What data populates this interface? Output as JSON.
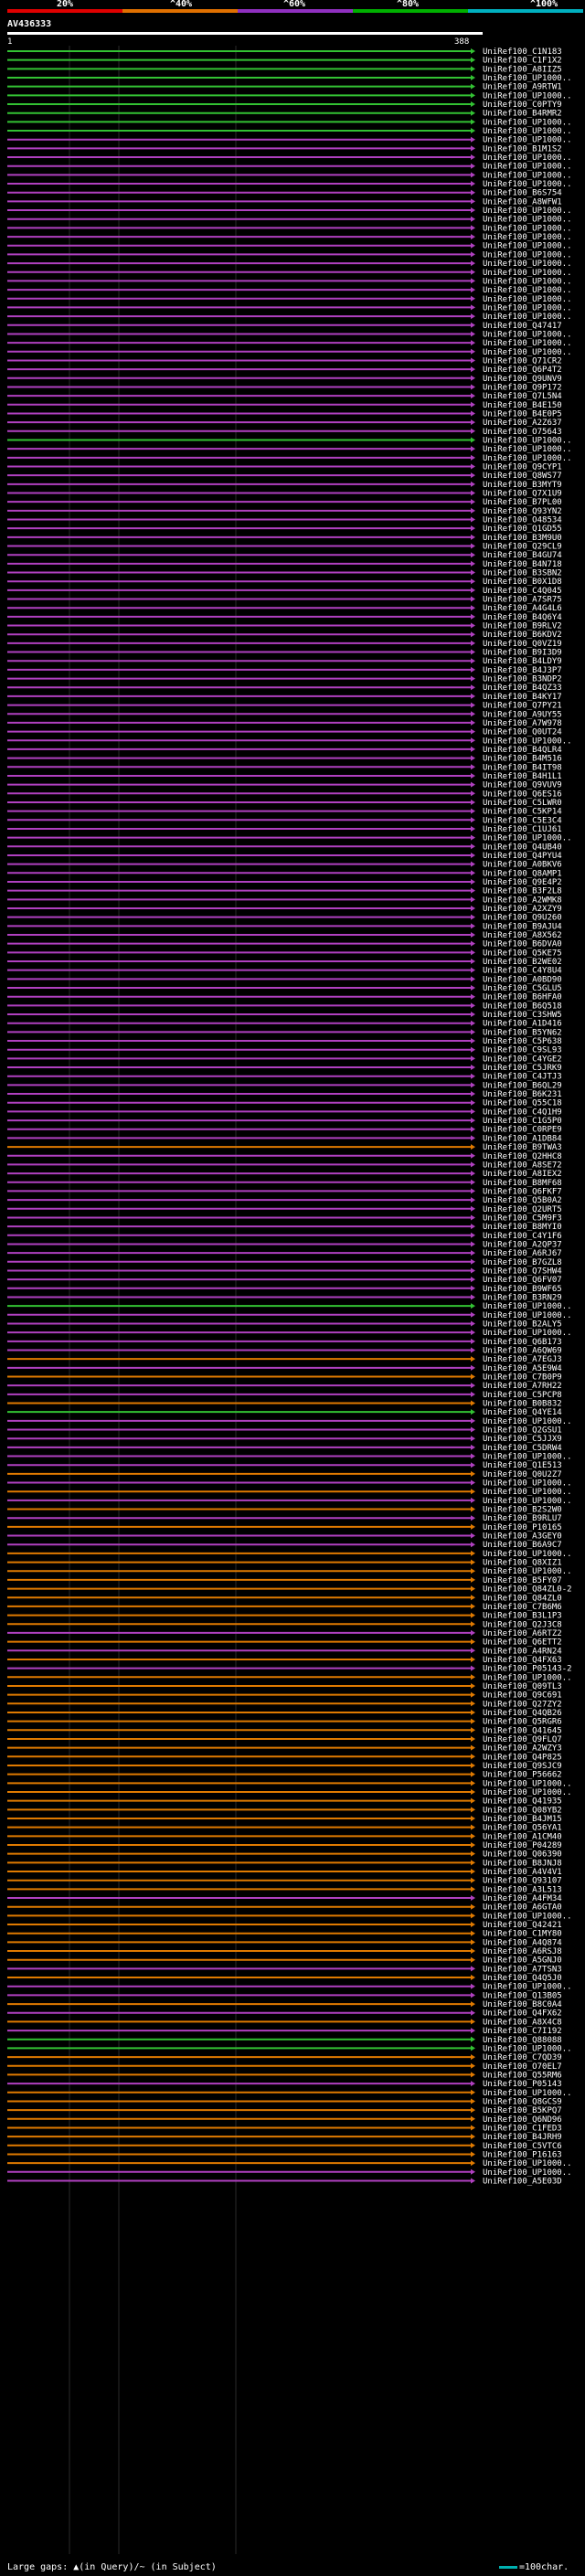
{
  "scale": {
    "colors": [
      "#e00000",
      "#e07000",
      "#9030c0",
      "#00b000",
      "#00b0c0"
    ],
    "labels": [
      "20%",
      "^40%",
      "^60%",
      "^80%",
      "^100%"
    ]
  },
  "query": {
    "id": "AV436333",
    "start": "1",
    "end": "388"
  },
  "legend_colors": {
    "green": "#33c233",
    "purple": "#b040c0",
    "orange": "#e07a00",
    "gap": "#ffffff"
  },
  "hits": [
    {
      "id": "UniRef100_C1N183",
      "c": "g"
    },
    {
      "id": "UniRef100_C1F1X2",
      "c": "g"
    },
    {
      "id": "UniRef100_A8IIZ5",
      "c": "g"
    },
    {
      "id": "UniRef100_UP1000..",
      "c": "g"
    },
    {
      "id": "UniRef100_A9RTW1",
      "c": "g"
    },
    {
      "id": "UniRef100_UP1000..",
      "c": "g"
    },
    {
      "id": "UniRef100_C0PTY9",
      "c": "g"
    },
    {
      "id": "UniRef100_B4RMR2",
      "c": "g"
    },
    {
      "id": "UniRef100_UP1000..",
      "c": "g"
    },
    {
      "id": "UniRef100_UP1000..",
      "c": "g"
    },
    {
      "id": "UniRef100_UP1000..",
      "c": "p"
    },
    {
      "id": "UniRef100_B1M1S2",
      "c": "p"
    },
    {
      "id": "UniRef100_UP1000..",
      "c": "p"
    },
    {
      "id": "UniRef100_UP1000..",
      "c": "p"
    },
    {
      "id": "UniRef100_UP1000..",
      "c": "p"
    },
    {
      "id": "UniRef100_UP1000..",
      "c": "p"
    },
    {
      "id": "UniRef100_B6S754",
      "c": "p"
    },
    {
      "id": "UniRef100_A8WFW1",
      "c": "p"
    },
    {
      "id": "UniRef100_UP1000..",
      "c": "p"
    },
    {
      "id": "UniRef100_UP1000..",
      "c": "p"
    },
    {
      "id": "UniRef100_UP1000..",
      "c": "p"
    },
    {
      "id": "UniRef100_UP1000..",
      "c": "p"
    },
    {
      "id": "UniRef100_UP1000..",
      "c": "p"
    },
    {
      "id": "UniRef100_UP1000..",
      "c": "p"
    },
    {
      "id": "UniRef100_UP1000..",
      "c": "p"
    },
    {
      "id": "UniRef100_UP1000..",
      "c": "p"
    },
    {
      "id": "UniRef100_UP1000..",
      "c": "p"
    },
    {
      "id": "UniRef100_UP1000..",
      "c": "p"
    },
    {
      "id": "UniRef100_UP1000..",
      "c": "p"
    },
    {
      "id": "UniRef100_UP1000..",
      "c": "p"
    },
    {
      "id": "UniRef100_UP1000..",
      "c": "p"
    },
    {
      "id": "UniRef100_Q47417",
      "c": "p"
    },
    {
      "id": "UniRef100_UP1000..",
      "c": "p"
    },
    {
      "id": "UniRef100_UP1000..",
      "c": "p"
    },
    {
      "id": "UniRef100_UP1000..",
      "c": "p"
    },
    {
      "id": "UniRef100_Q71CR2",
      "c": "p"
    },
    {
      "id": "UniRef100_Q6P4T2",
      "c": "p"
    },
    {
      "id": "UniRef100_Q9UNV9",
      "c": "p"
    },
    {
      "id": "UniRef100_Q9P172",
      "c": "p"
    },
    {
      "id": "UniRef100_Q7L5N4",
      "c": "p"
    },
    {
      "id": "UniRef100_B4E150",
      "c": "p"
    },
    {
      "id": "UniRef100_B4E0P5",
      "c": "p"
    },
    {
      "id": "UniRef100_A2Z637",
      "c": "p"
    },
    {
      "id": "UniRef100_O75643",
      "c": "p"
    },
    {
      "id": "UniRef100_UP1000..",
      "c": "g"
    },
    {
      "id": "UniRef100_UP1000..",
      "c": "p"
    },
    {
      "id": "UniRef100_UP1000..",
      "c": "p"
    },
    {
      "id": "UniRef100_Q9CYP1",
      "c": "p"
    },
    {
      "id": "UniRef100_Q8WS77",
      "c": "p"
    },
    {
      "id": "UniRef100_B3MYT9",
      "c": "p"
    },
    {
      "id": "UniRef100_Q7X1U9",
      "c": "p"
    },
    {
      "id": "UniRef100_B7PL00",
      "c": "p"
    },
    {
      "id": "UniRef100_Q93YN2",
      "c": "p"
    },
    {
      "id": "UniRef100_O48534",
      "c": "p"
    },
    {
      "id": "UniRef100_Q1GD55",
      "c": "p"
    },
    {
      "id": "UniRef100_B3M9U0",
      "c": "p"
    },
    {
      "id": "UniRef100_Q29CL9",
      "c": "p"
    },
    {
      "id": "UniRef100_B4GU74",
      "c": "p"
    },
    {
      "id": "UniRef100_B4N718",
      "c": "p"
    },
    {
      "id": "UniRef100_B3SBN2",
      "c": "p"
    },
    {
      "id": "UniRef100_B0X1D8",
      "c": "p"
    },
    {
      "id": "UniRef100_C4Q045",
      "c": "p"
    },
    {
      "id": "UniRef100_A7SR75",
      "c": "p"
    },
    {
      "id": "UniRef100_A4G4L6",
      "c": "p"
    },
    {
      "id": "UniRef100_B4Q6Y4",
      "c": "p"
    },
    {
      "id": "UniRef100_B9RLV2",
      "c": "p"
    },
    {
      "id": "UniRef100_B6KDV2",
      "c": "p"
    },
    {
      "id": "UniRef100_Q0VZ19",
      "c": "p"
    },
    {
      "id": "UniRef100_B9I3D9",
      "c": "p"
    },
    {
      "id": "UniRef100_B4LDY9",
      "c": "p"
    },
    {
      "id": "UniRef100_B4J3P7",
      "c": "p"
    },
    {
      "id": "UniRef100_B3NDP2",
      "c": "p"
    },
    {
      "id": "UniRef100_B4QZ33",
      "c": "p"
    },
    {
      "id": "UniRef100_B4KY17",
      "c": "p"
    },
    {
      "id": "UniRef100_Q7PY21",
      "c": "p"
    },
    {
      "id": "UniRef100_A9UY55",
      "c": "p"
    },
    {
      "id": "UniRef100_A7W978",
      "c": "p"
    },
    {
      "id": "UniRef100_Q0UT24",
      "c": "p"
    },
    {
      "id": "UniRef100_UP1000..",
      "c": "p"
    },
    {
      "id": "UniRef100_B4QLR4",
      "c": "p"
    },
    {
      "id": "UniRef100_B4M516",
      "c": "p"
    },
    {
      "id": "UniRef100_B4IT98",
      "c": "p"
    },
    {
      "id": "UniRef100_B4H1L1",
      "c": "p"
    },
    {
      "id": "UniRef100_Q9VUV9",
      "c": "p"
    },
    {
      "id": "UniRef100_Q6ES16",
      "c": "p"
    },
    {
      "id": "UniRef100_C5LWR0",
      "c": "p"
    },
    {
      "id": "UniRef100_C5KP14",
      "c": "p"
    },
    {
      "id": "UniRef100_C5E3C4",
      "c": "p"
    },
    {
      "id": "UniRef100_C1UJ61",
      "c": "p"
    },
    {
      "id": "UniRef100_UP1000..",
      "c": "p"
    },
    {
      "id": "UniRef100_Q4UB40",
      "c": "p"
    },
    {
      "id": "UniRef100_Q4PYU4",
      "c": "p"
    },
    {
      "id": "UniRef100_A0BKV6",
      "c": "p"
    },
    {
      "id": "UniRef100_Q8AMP1",
      "c": "p"
    },
    {
      "id": "UniRef100_Q9E4P2",
      "c": "p"
    },
    {
      "id": "UniRef100_B3F2L8",
      "c": "p"
    },
    {
      "id": "UniRef100_A2WMK8",
      "c": "p"
    },
    {
      "id": "UniRef100_A2XZY9",
      "c": "p"
    },
    {
      "id": "UniRef100_Q9U260",
      "c": "p"
    },
    {
      "id": "UniRef100_B9AJU4",
      "c": "p"
    },
    {
      "id": "UniRef100_A8X562",
      "c": "p"
    },
    {
      "id": "UniRef100_B6DVA0",
      "c": "p"
    },
    {
      "id": "UniRef100_Q5KE75",
      "c": "p"
    },
    {
      "id": "UniRef100_B2WE02",
      "c": "p"
    },
    {
      "id": "UniRef100_C4Y8U4",
      "c": "p"
    },
    {
      "id": "UniRef100_A0BD90",
      "c": "p"
    },
    {
      "id": "UniRef100_C5GLU5",
      "c": "p"
    },
    {
      "id": "UniRef100_B6HFA0",
      "c": "p"
    },
    {
      "id": "UniRef100_B6Q518",
      "c": "p"
    },
    {
      "id": "UniRef100_C3SHW5",
      "c": "p"
    },
    {
      "id": "UniRef100_A1D416",
      "c": "p"
    },
    {
      "id": "UniRef100_B5YN62",
      "c": "p"
    },
    {
      "id": "UniRef100_C5P638",
      "c": "p"
    },
    {
      "id": "UniRef100_C9SL93",
      "c": "p"
    },
    {
      "id": "UniRef100_C4YGE2",
      "c": "p"
    },
    {
      "id": "UniRef100_C5JRK9",
      "c": "p"
    },
    {
      "id": "UniRef100_C4JTJ3",
      "c": "p"
    },
    {
      "id": "UniRef100_B6QL29",
      "c": "p"
    },
    {
      "id": "UniRef100_B6K231",
      "c": "p"
    },
    {
      "id": "UniRef100_Q55C18",
      "c": "p"
    },
    {
      "id": "UniRef100_C4Q1H9",
      "c": "p"
    },
    {
      "id": "UniRef100_C1G5P0",
      "c": "p"
    },
    {
      "id": "UniRef100_C0RPE9",
      "c": "p"
    },
    {
      "id": "UniRef100_A1DB84",
      "c": "p"
    },
    {
      "id": "UniRef100_B9TWA3",
      "c": "o"
    },
    {
      "id": "UniRef100_Q2HHC8",
      "c": "p"
    },
    {
      "id": "UniRef100_A8SE72",
      "c": "p"
    },
    {
      "id": "UniRef100_A8IEX2",
      "c": "p"
    },
    {
      "id": "UniRef100_B8MF68",
      "c": "p"
    },
    {
      "id": "UniRef100_Q6FKF7",
      "c": "p"
    },
    {
      "id": "UniRef100_Q5B0A2",
      "c": "p"
    },
    {
      "id": "UniRef100_Q2URT5",
      "c": "p"
    },
    {
      "id": "UniRef100_C5M9F3",
      "c": "p"
    },
    {
      "id": "UniRef100_B8MYI0",
      "c": "p"
    },
    {
      "id": "UniRef100_C4Y1F6",
      "c": "p"
    },
    {
      "id": "UniRef100_A2QP37",
      "c": "p"
    },
    {
      "id": "UniRef100_A6RJ67",
      "c": "p"
    },
    {
      "id": "UniRef100_B7GZL8",
      "c": "p"
    },
    {
      "id": "UniRef100_Q7SHW4",
      "c": "p"
    },
    {
      "id": "UniRef100_Q6FV07",
      "c": "p"
    },
    {
      "id": "UniRef100_B9WF65",
      "c": "p"
    },
    {
      "id": "UniRef100_B3RN29",
      "c": "p"
    },
    {
      "id": "UniRef100_UP1000..",
      "c": "g"
    },
    {
      "id": "UniRef100_UP1000..",
      "c": "p"
    },
    {
      "id": "UniRef100_B2ALY5",
      "c": "p"
    },
    {
      "id": "UniRef100_UP1000..",
      "c": "p"
    },
    {
      "id": "UniRef100_Q6B173",
      "c": "p"
    },
    {
      "id": "UniRef100_A6QW69",
      "c": "p"
    },
    {
      "id": "UniRef100_A7EGJ3",
      "c": "o"
    },
    {
      "id": "UniRef100_A5E9W4",
      "c": "p"
    },
    {
      "id": "UniRef100_C7B0P9",
      "c": "o"
    },
    {
      "id": "UniRef100_A7RH22",
      "c": "p"
    },
    {
      "id": "UniRef100_C5PCP8",
      "c": "p"
    },
    {
      "id": "UniRef100_B0B832",
      "c": "o"
    },
    {
      "id": "UniRef100_Q4YE14",
      "c": "g"
    },
    {
      "id": "UniRef100_UP1000..",
      "c": "p"
    },
    {
      "id": "UniRef100_Q2GSU1",
      "c": "p"
    },
    {
      "id": "UniRef100_C5JJX9",
      "c": "p"
    },
    {
      "id": "UniRef100_C5DRW4",
      "c": "p"
    },
    {
      "id": "UniRef100_UP1000..",
      "c": "p"
    },
    {
      "id": "UniRef100_Q1E513",
      "c": "p"
    },
    {
      "id": "UniRef100_Q0U2Z7",
      "c": "o"
    },
    {
      "id": "UniRef100_UP1000..",
      "c": "p"
    },
    {
      "id": "UniRef100_UP1000..",
      "c": "o"
    },
    {
      "id": "UniRef100_UP1000..",
      "c": "p"
    },
    {
      "id": "UniRef100_B2S2W0",
      "c": "o"
    },
    {
      "id": "UniRef100_B9RLU7",
      "c": "p"
    },
    {
      "id": "UniRef100_P10165",
      "c": "o"
    },
    {
      "id": "UniRef100_A3GEY0",
      "c": "p"
    },
    {
      "id": "UniRef100_B6A9C7",
      "c": "p"
    },
    {
      "id": "UniRef100_UP1000..",
      "c": "o"
    },
    {
      "id": "UniRef100_Q8XIZ1",
      "c": "o"
    },
    {
      "id": "UniRef100_UP1000..",
      "c": "o"
    },
    {
      "id": "UniRef100_B5FY07",
      "c": "o"
    },
    {
      "id": "UniRef100_Q84ZL0-2",
      "c": "o"
    },
    {
      "id": "UniRef100_Q84ZL0",
      "c": "o"
    },
    {
      "id": "UniRef100_C7B6M6",
      "c": "o"
    },
    {
      "id": "UniRef100_B3L1P3",
      "c": "o"
    },
    {
      "id": "UniRef100_Q2J3C8",
      "c": "o"
    },
    {
      "id": "UniRef100_A6RTZ2",
      "c": "p"
    },
    {
      "id": "UniRef100_Q6ETT2",
      "c": "o"
    },
    {
      "id": "UniRef100_A4RN24",
      "c": "p"
    },
    {
      "id": "UniRef100_Q4FX63",
      "c": "o"
    },
    {
      "id": "UniRef100_P05143-2",
      "c": "p"
    },
    {
      "id": "UniRef100_UP1000..",
      "c": "o"
    },
    {
      "id": "UniRef100_Q09TL3",
      "c": "o"
    },
    {
      "id": "UniRef100_Q9C691",
      "c": "o"
    },
    {
      "id": "UniRef100_Q27ZY2",
      "c": "o"
    },
    {
      "id": "UniRef100_Q4QB26",
      "c": "o"
    },
    {
      "id": "UniRef100_Q5RGR6",
      "c": "o"
    },
    {
      "id": "UniRef100_Q41645",
      "c": "o"
    },
    {
      "id": "UniRef100_Q9FLQ7",
      "c": "o"
    },
    {
      "id": "UniRef100_A2WZY3",
      "c": "o"
    },
    {
      "id": "UniRef100_Q4P825",
      "c": "o"
    },
    {
      "id": "UniRef100_Q9SJC9",
      "c": "o"
    },
    {
      "id": "UniRef100_P56662",
      "c": "o"
    },
    {
      "id": "UniRef100_UP1000..",
      "c": "o"
    },
    {
      "id": "UniRef100_UP1000..",
      "c": "o"
    },
    {
      "id": "UniRef100_Q41935",
      "c": "o"
    },
    {
      "id": "UniRef100_Q08YB2",
      "c": "o"
    },
    {
      "id": "UniRef100_B4JM15",
      "c": "o"
    },
    {
      "id": "UniRef100_Q56YA1",
      "c": "o"
    },
    {
      "id": "UniRef100_A1CM40",
      "c": "o"
    },
    {
      "id": "UniRef100_P04289",
      "c": "o"
    },
    {
      "id": "UniRef100_Q06390",
      "c": "o"
    },
    {
      "id": "UniRef100_B8JNJ8",
      "c": "o"
    },
    {
      "id": "UniRef100_A4V4V1",
      "c": "o"
    },
    {
      "id": "UniRef100_Q93107",
      "c": "o"
    },
    {
      "id": "UniRef100_A3L513",
      "c": "o"
    },
    {
      "id": "UniRef100_A4FM34",
      "c": "p"
    },
    {
      "id": "UniRef100_A6GTA0",
      "c": "o"
    },
    {
      "id": "UniRef100_UP1000..",
      "c": "o"
    },
    {
      "id": "UniRef100_Q42421",
      "c": "o"
    },
    {
      "id": "UniRef100_C1MY80",
      "c": "o"
    },
    {
      "id": "UniRef100_A4Q874",
      "c": "o"
    },
    {
      "id": "UniRef100_A6RSJ8",
      "c": "o"
    },
    {
      "id": "UniRef100_A5GNJ0",
      "c": "o"
    },
    {
      "id": "UniRef100_A7TSN3",
      "c": "p"
    },
    {
      "id": "UniRef100_Q4Q5J0",
      "c": "o"
    },
    {
      "id": "UniRef100_UP1000..",
      "c": "p"
    },
    {
      "id": "UniRef100_Q13B05",
      "c": "p"
    },
    {
      "id": "UniRef100_B8C0A4",
      "c": "o"
    },
    {
      "id": "UniRef100_Q4FX62",
      "c": "p"
    },
    {
      "id": "UniRef100_A8X4C8",
      "c": "o"
    },
    {
      "id": "UniRef100_C7I192",
      "c": "p"
    },
    {
      "id": "UniRef100_Q88088",
      "c": "g"
    },
    {
      "id": "UniRef100_UP1000..",
      "c": "g"
    },
    {
      "id": "UniRef100_C7QD39",
      "c": "o"
    },
    {
      "id": "UniRef100_O70EL7",
      "c": "o"
    },
    {
      "id": "UniRef100_Q55RM6",
      "c": "o"
    },
    {
      "id": "UniRef100_P05143",
      "c": "p"
    },
    {
      "id": "UniRef100_UP1000..",
      "c": "o"
    },
    {
      "id": "UniRef100_Q8GCS9",
      "c": "o"
    },
    {
      "id": "UniRef100_B5KPQ7",
      "c": "o"
    },
    {
      "id": "UniRef100_Q6ND96",
      "c": "o"
    },
    {
      "id": "UniRef100_C1FED3",
      "c": "o"
    },
    {
      "id": "UniRef100_B4JRH9",
      "c": "o"
    },
    {
      "id": "UniRef100_C5VTC6",
      "c": "o"
    },
    {
      "id": "UniRef100_P16163",
      "c": "o"
    },
    {
      "id": "UniRef100_UP1000..",
      "c": "o"
    },
    {
      "id": "UniRef100_UP1000..",
      "c": "p"
    },
    {
      "id": "UniRef100_A5E03D",
      "c": "p"
    }
  ],
  "footer": {
    "left": "Large gaps: ▲(in Query)/~ (in Subject)",
    "right": "=100char."
  }
}
